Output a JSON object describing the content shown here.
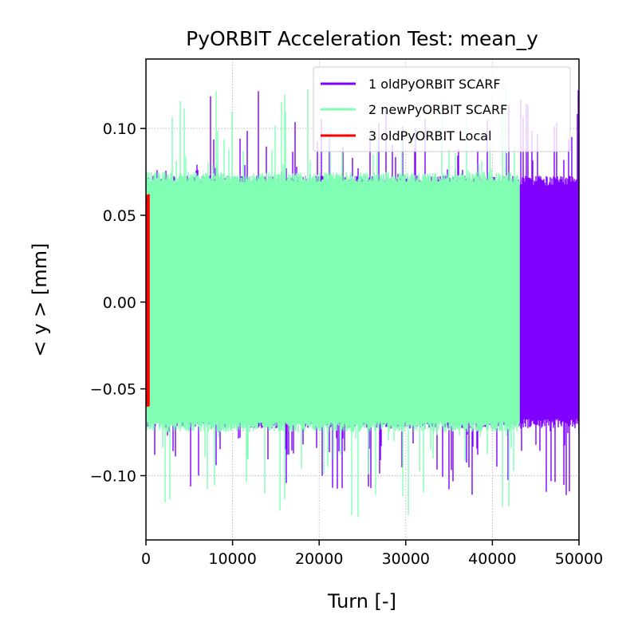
{
  "chart_data": {
    "type": "line",
    "title": "PyORBIT Acceleration Test: mean_y",
    "xlabel": "Turn [-]",
    "ylabel": "< y >  [mm]",
    "xlim": [
      0,
      50000
    ],
    "ylim": [
      -0.137,
      0.14
    ],
    "xticks": [
      0,
      10000,
      20000,
      30000,
      40000,
      50000
    ],
    "xtick_labels": [
      "0",
      "10000",
      "20000",
      "30000",
      "40000",
      "50000"
    ],
    "yticks": [
      -0.1,
      -0.05,
      0.0,
      0.05,
      0.1
    ],
    "ytick_labels": [
      "−0.10",
      "−0.05",
      "0.00",
      "0.05",
      "0.10"
    ],
    "grid": true,
    "legend_position": "top-right",
    "series": [
      {
        "name": "1 oldPyORBIT SCARF",
        "color": "#8000ff",
        "x_range": [
          0,
          50000
        ],
        "band_min": -0.112,
        "band_max": 0.125,
        "typical_band": [
          -0.07,
          0.07
        ]
      },
      {
        "name": "2 newPyORBIT SCARF",
        "color": "#80ffb4",
        "x_range": [
          0,
          43100
        ],
        "band_min": -0.125,
        "band_max": 0.128,
        "typical_band": [
          -0.072,
          0.072
        ]
      },
      {
        "name": "3 oldPyORBIT Local",
        "color": "#ff0000",
        "x_range": [
          0,
          300
        ],
        "band_min": -0.065,
        "band_max": 0.068,
        "typical_band": [
          -0.06,
          0.06
        ]
      }
    ]
  }
}
